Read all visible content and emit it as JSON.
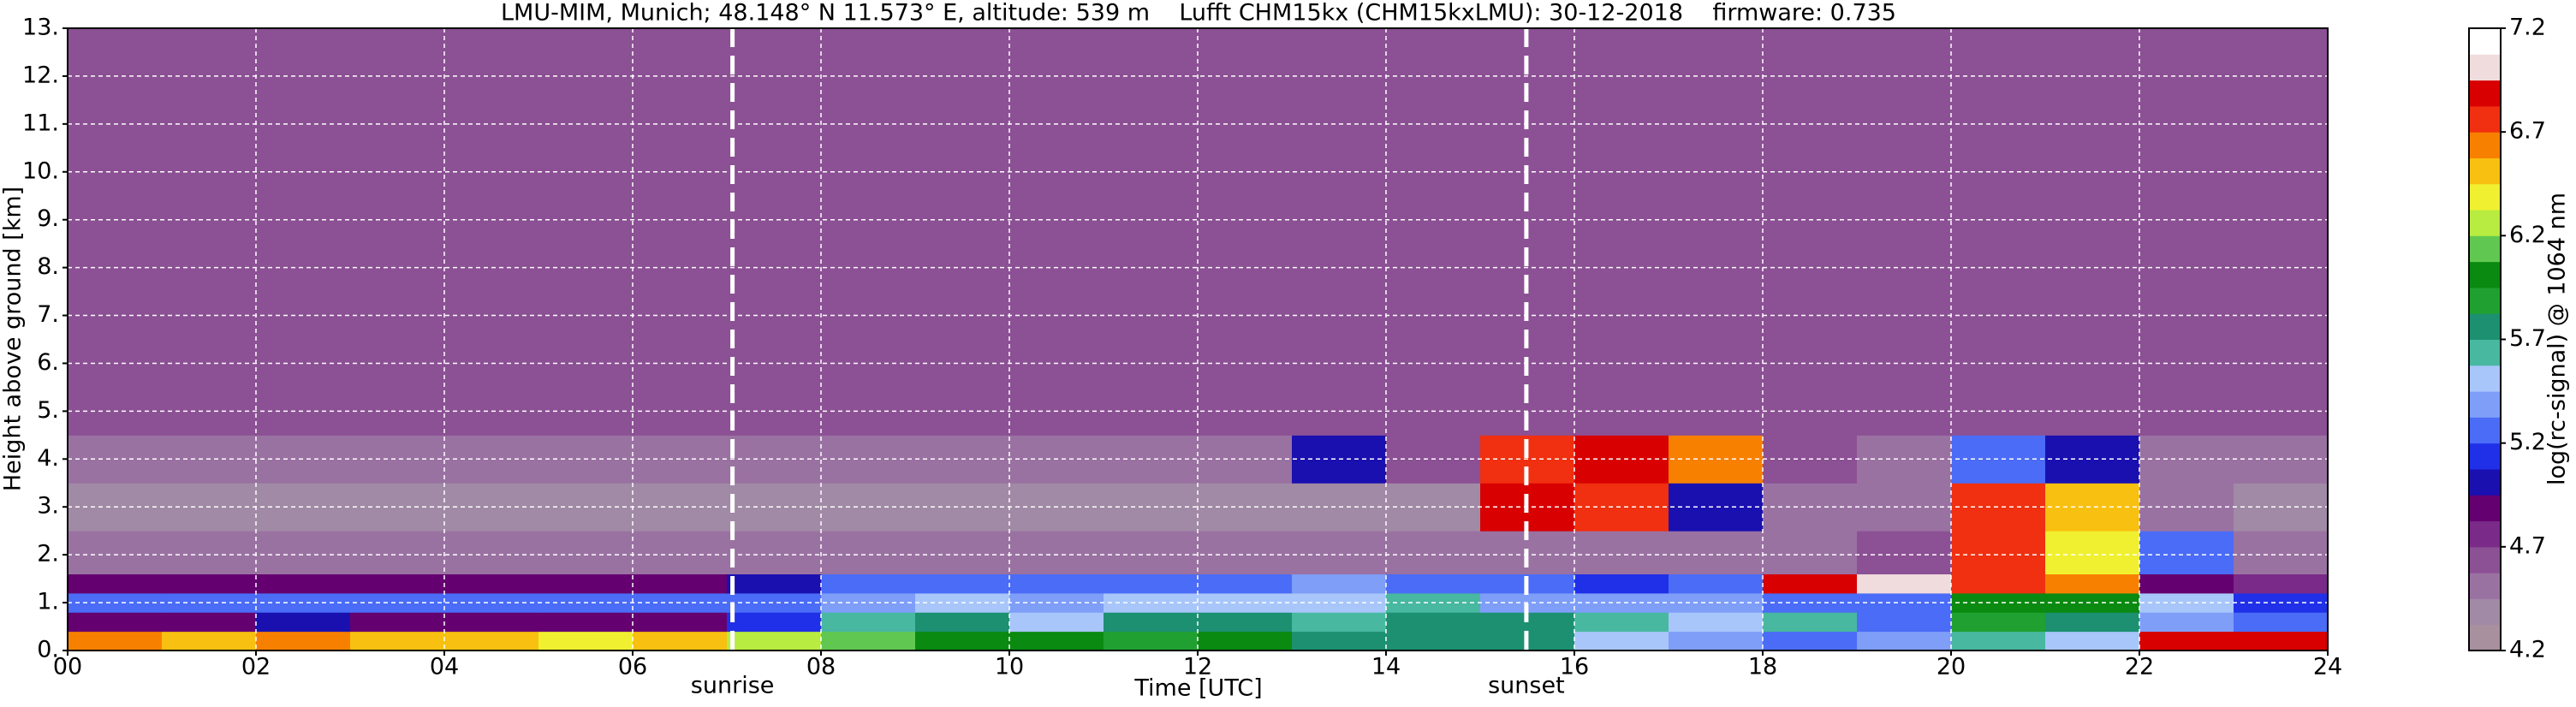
{
  "chart_data": {
    "type": "heatmap",
    "title": "LMU-MIM, Munich; 48.148° N 11.573° E, altitude: 539 m    Lufft CHM15kx (CHM15kxLMU): 30-12-2018    firmware: 0.735",
    "x_label": "Time [UTC]",
    "y_label": "Height above ground [km]",
    "colorbar_label": "log(rc-signal) @ 1064 nm",
    "x_edges": [
      0,
      1,
      2,
      3,
      4,
      5,
      6,
      7,
      8,
      9,
      10,
      11,
      12,
      13,
      14,
      15,
      16,
      17,
      18,
      19,
      20,
      21,
      22,
      23,
      24
    ],
    "y_edges": [
      0,
      0.4,
      0.8,
      1.2,
      1.6,
      2.5,
      3.5,
      4.5,
      13
    ],
    "z": [
      [
        6.6,
        6.5,
        6.6,
        6.5,
        6.5,
        6.4,
        6.5,
        6.3,
        6.1,
        6.0,
        6.0,
        5.9,
        6.0,
        5.8,
        5.7,
        5.8,
        5.5,
        5.4,
        5.3,
        5.4,
        5.6,
        5.5,
        6.9,
        6.9
      ],
      [
        4.9,
        4.9,
        5.0,
        4.9,
        4.9,
        4.9,
        4.9,
        5.1,
        5.6,
        5.8,
        5.5,
        5.8,
        5.7,
        5.6,
        5.7,
        5.8,
        5.6,
        5.5,
        5.6,
        5.3,
        5.9,
        5.8,
        5.4,
        5.2
      ],
      [
        5.3,
        5.3,
        5.3,
        5.3,
        5.3,
        5.3,
        5.3,
        5.3,
        5.4,
        5.5,
        5.4,
        5.5,
        5.5,
        5.5,
        5.6,
        5.4,
        5.4,
        5.4,
        5.2,
        5.2,
        6.0,
        6.0,
        5.5,
        5.1
      ],
      [
        4.9,
        4.9,
        4.9,
        4.9,
        4.9,
        4.9,
        4.9,
        5.0,
        5.2,
        5.3,
        5.2,
        5.3,
        5.3,
        5.4,
        5.2,
        5.3,
        5.1,
        5.2,
        6.9,
        7.0,
        6.8,
        6.6,
        4.9,
        4.8
      ],
      [
        4.5,
        4.5,
        4.5,
        4.5,
        4.5,
        4.5,
        4.5,
        4.5,
        4.5,
        4.5,
        4.5,
        4.5,
        4.5,
        4.5,
        4.5,
        4.5,
        4.5,
        4.5,
        4.5,
        4.6,
        6.7,
        6.4,
        5.2,
        4.5
      ],
      [
        4.4,
        4.4,
        4.4,
        4.4,
        4.4,
        4.4,
        4.4,
        4.4,
        4.4,
        4.4,
        4.4,
        4.4,
        4.4,
        4.4,
        4.4,
        6.9,
        6.8,
        5.0,
        4.5,
        4.5,
        6.8,
        6.5,
        4.5,
        4.4
      ],
      [
        4.5,
        4.5,
        4.5,
        4.5,
        4.5,
        4.5,
        4.5,
        4.5,
        4.5,
        4.5,
        4.5,
        4.5,
        4.5,
        5.0,
        4.6,
        6.8,
        6.9,
        6.6,
        4.6,
        4.5,
        5.2,
        5.0,
        4.5,
        4.5
      ],
      [
        4.6,
        4.6,
        4.6,
        4.6,
        4.6,
        4.6,
        4.6,
        4.6,
        4.6,
        4.6,
        4.6,
        4.6,
        4.6,
        4.6,
        4.6,
        4.6,
        4.6,
        4.6,
        4.6,
        4.6,
        4.6,
        4.6,
        4.6,
        4.6
      ]
    ],
    "xlim": [
      0,
      24
    ],
    "xticks": [
      {
        "value": 0,
        "label": "00"
      },
      {
        "value": 2,
        "label": "02"
      },
      {
        "value": 4,
        "label": "04"
      },
      {
        "value": 6,
        "label": "06"
      },
      {
        "value": 8,
        "label": "08"
      },
      {
        "value": 10,
        "label": "10"
      },
      {
        "value": 12,
        "label": "12"
      },
      {
        "value": 14,
        "label": "14"
      },
      {
        "value": 16,
        "label": "16"
      },
      {
        "value": 18,
        "label": "18"
      },
      {
        "value": 20,
        "label": "20"
      },
      {
        "value": 22,
        "label": "22"
      },
      {
        "value": 24,
        "label": "24"
      }
    ],
    "ylim": [
      0,
      13
    ],
    "yticks": [
      {
        "value": 0,
        "label": "0."
      },
      {
        "value": 1,
        "label": "1."
      },
      {
        "value": 2,
        "label": "2."
      },
      {
        "value": 3,
        "label": "3."
      },
      {
        "value": 4,
        "label": "4."
      },
      {
        "value": 5,
        "label": "5."
      },
      {
        "value": 6,
        "label": "6."
      },
      {
        "value": 7,
        "label": "7."
      },
      {
        "value": 8,
        "label": "8."
      },
      {
        "value": 9,
        "label": "9."
      },
      {
        "value": 10,
        "label": "10."
      },
      {
        "value": 11,
        "label": "11."
      },
      {
        "value": 12,
        "label": "12."
      },
      {
        "value": 13,
        "label": "13."
      }
    ],
    "clim": [
      4.2,
      7.2
    ],
    "cticks": [
      4.2,
      4.7,
      5.2,
      5.7,
      6.2,
      6.7,
      7.2
    ],
    "colormap": [
      "#a8909f",
      "#a18aa6",
      "#9a72a2",
      "#8c5095",
      "#7a2a88",
      "#650070",
      "#1a10b0",
      "#2030e8",
      "#4a6cf6",
      "#7e9ef8",
      "#a8c6fa",
      "#48b8a0",
      "#1c9070",
      "#20a030",
      "#0a8a10",
      "#60c850",
      "#b8ec40",
      "#f0f030",
      "#f8c010",
      "#f88000",
      "#f03010",
      "#d80000",
      "#f0dcdc",
      "#ffffff"
    ],
    "grid": true,
    "annotations": [
      {
        "text": "sunrise",
        "x": 7.06
      },
      {
        "text": "sunset",
        "x": 15.49
      }
    ]
  }
}
